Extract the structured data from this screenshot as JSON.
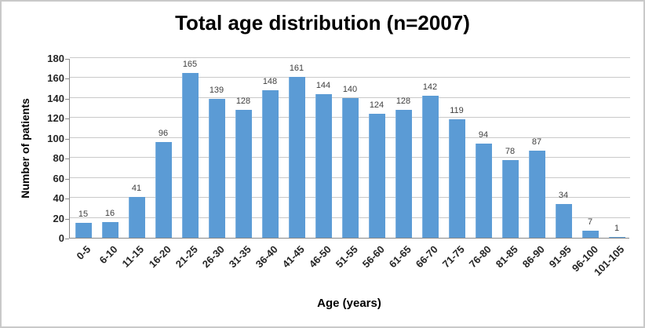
{
  "chart_data": {
    "type": "bar",
    "title": "Total age distribution (n=2007)",
    "xlabel": "Age (years)",
    "ylabel": "Number of patients",
    "categories": [
      "0-5",
      "6-10",
      "11-15",
      "16-20",
      "21-25",
      "26-30",
      "31-35",
      "36-40",
      "41-45",
      "46-50",
      "51-55",
      "56-60",
      "61-65",
      "66-70",
      "71-75",
      "76-80",
      "81-85",
      "86-90",
      "91-95",
      "96-100",
      "101-105"
    ],
    "values": [
      15,
      16,
      41,
      96,
      165,
      139,
      128,
      148,
      161,
      144,
      140,
      124,
      128,
      142,
      119,
      94,
      78,
      87,
      34,
      7,
      1
    ],
    "ylim": [
      0,
      180
    ],
    "ytick_interval": 20,
    "yticks": [
      0,
      20,
      40,
      60,
      80,
      100,
      120,
      140,
      160,
      180
    ],
    "grid": "horizontal",
    "legend": "none",
    "data_labels": true,
    "x_label_rotation_deg": 45
  },
  "colors": {
    "bar": "#5b9bd5",
    "gridline": "#c9c9c9",
    "axis": "#898989",
    "frame_border": "#c9c9c9",
    "data_label": "#404040",
    "tick_label": "#262626",
    "title": "#000000"
  }
}
